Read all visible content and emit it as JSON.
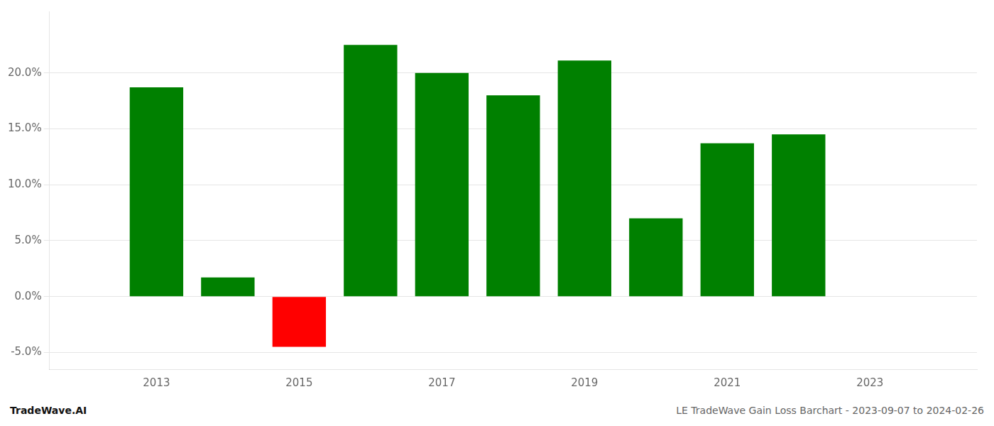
{
  "chart_data": {
    "type": "bar",
    "x": [
      2013,
      2014,
      2015,
      2016,
      2017,
      2018,
      2019,
      2020,
      2021,
      2022
    ],
    "values": [
      0.187,
      0.017,
      -0.045,
      0.225,
      0.2,
      0.18,
      0.211,
      0.07,
      0.137,
      0.145
    ],
    "colors": [
      "#008000",
      "#008000",
      "#ff0000",
      "#008000",
      "#008000",
      "#008000",
      "#008000",
      "#008000",
      "#008000",
      "#008000"
    ],
    "xlim": [
      2011.5,
      2024.5
    ],
    "xticks": [
      2013,
      2015,
      2017,
      2019,
      2021,
      2023
    ],
    "ylim": [
      -0.065,
      0.255
    ],
    "yticks": [
      {
        "value": -0.05,
        "label": "-5.0%"
      },
      {
        "value": 0.0,
        "label": "0.0%"
      },
      {
        "value": 0.05,
        "label": "5.0%"
      },
      {
        "value": 0.1,
        "label": "10.0%"
      },
      {
        "value": 0.15,
        "label": "15.0%"
      },
      {
        "value": 0.2,
        "label": "20.0%"
      }
    ],
    "grid": "y",
    "annotations": [
      "TradeWave.AI",
      "LE TradeWave Gain Loss Barchart - 2023-09-07 to 2024-02-26"
    ]
  }
}
